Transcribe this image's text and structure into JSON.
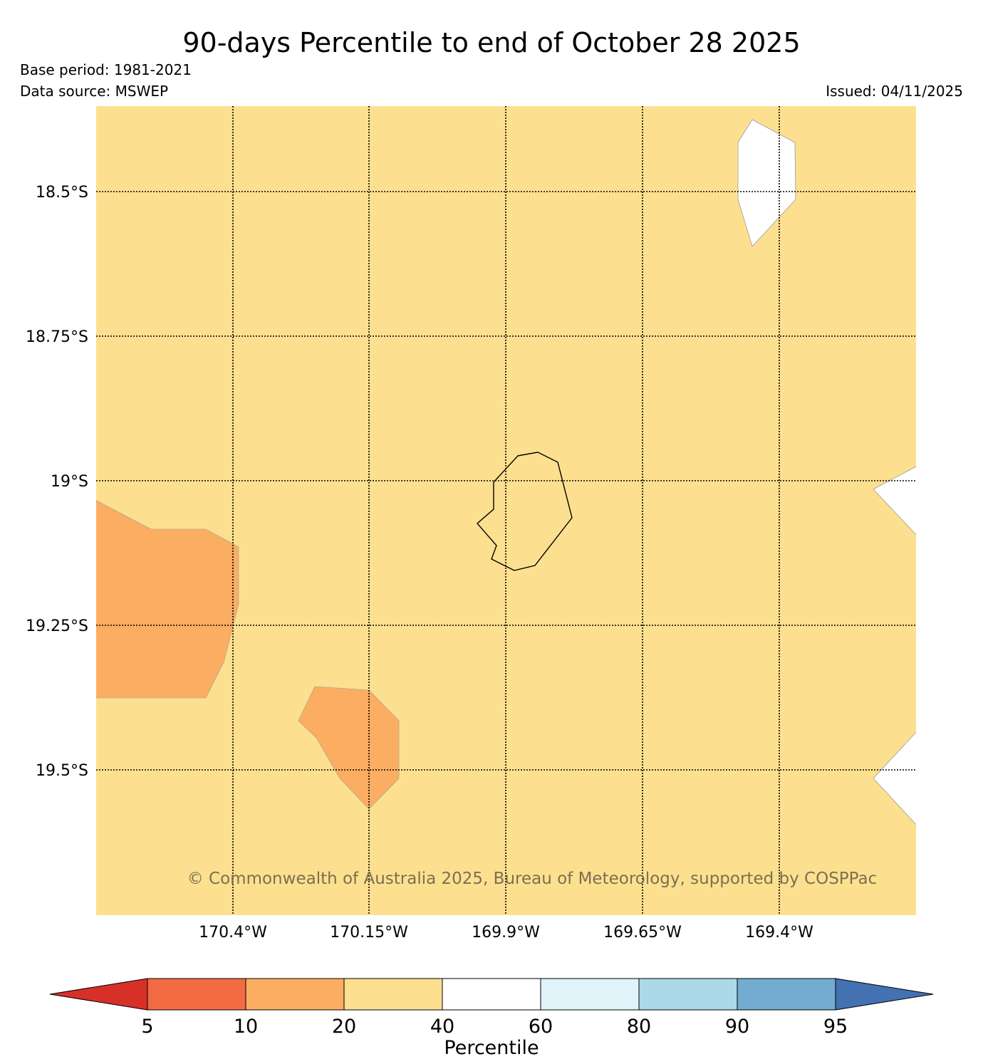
{
  "header": {
    "title": "90-days Percentile to end of October 28 2025",
    "base_period": "Base period: 1981-2021",
    "data_source": "Data source: MSWEP",
    "issued": "Issued: 04/11/2025"
  },
  "map": {
    "lat_labels": [
      "18.5°S",
      "18.75°S",
      "19°S",
      "19.25°S",
      "19.5°S"
    ],
    "lon_labels": [
      "170.4°W",
      "170.15°W",
      "169.9°W",
      "169.65°W",
      "169.4°W"
    ],
    "copyright": "© Commonwealth of Australia 2025, Bureau of Meteorology, supported by COSPPac",
    "background_class_color": "#fde08f"
  },
  "colorbar": {
    "label": "Percentile",
    "ticks": [
      "5",
      "10",
      "20",
      "40",
      "60",
      "80",
      "90",
      "95"
    ],
    "colors": [
      "#d73027",
      "#f26b43",
      "#fbae61",
      "#fde08f",
      "#ffffff",
      "#e0f3f8",
      "#abd9e9",
      "#74abd0",
      "#4371b1"
    ]
  }
}
